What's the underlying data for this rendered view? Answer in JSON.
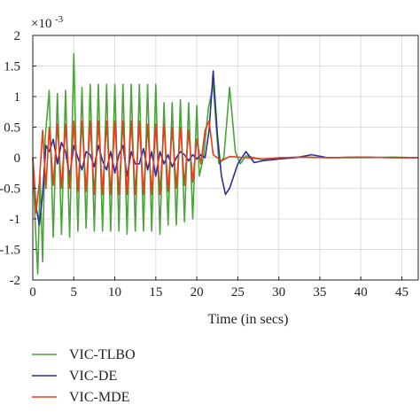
{
  "chart_data": {
    "type": "line",
    "title": "",
    "xlabel": "Time (in secs)",
    "ylabel": "",
    "y_exponent_label": "×10",
    "y_exponent_power": "-3",
    "xlim": [
      0,
      47
    ],
    "ylim": [
      -2,
      2
    ],
    "x_ticks": [
      0,
      5,
      10,
      15,
      20,
      25,
      30,
      35,
      40,
      45
    ],
    "x_tick_labels": [
      "0",
      "5",
      "10",
      "15",
      "20",
      "25",
      "30",
      "35",
      "40",
      "45"
    ],
    "y_ticks": [
      2,
      1.5,
      1,
      0.5,
      0,
      -0.5,
      -1,
      -1.5,
      -2
    ],
    "y_tick_labels": [
      "2",
      "1.5",
      "1",
      "0.5",
      "0",
      "-0.5",
      "-1",
      "-1.5",
      "-2"
    ],
    "grid": true,
    "legend_position": "bottom-left, below plot",
    "series": [
      {
        "name": "VIC-TLBO",
        "color": "#4aa43a",
        "x": [
          0,
          0.3,
          0.6,
          0.9,
          1.2,
          1.5,
          2.0,
          2.5,
          3.0,
          3.5,
          4.0,
          4.5,
          5.0,
          5.5,
          6.0,
          6.5,
          7.0,
          7.5,
          8.0,
          8.5,
          9.0,
          9.5,
          10.0,
          10.5,
          11.0,
          11.5,
          12.0,
          12.5,
          13.0,
          13.5,
          14.0,
          14.5,
          15.0,
          15.5,
          16.0,
          16.5,
          17.0,
          17.5,
          18.0,
          18.5,
          19.0,
          19.5,
          20.0,
          20.3,
          20.8,
          21.4,
          22.0,
          22.7,
          23.3,
          24.0,
          24.7,
          25.3,
          26.0,
          27.0,
          28.0,
          30.0,
          33.0,
          36.0,
          40.0,
          44.0,
          47.0
        ],
        "values": [
          0,
          -1.1,
          -1.9,
          -0.3,
          -1.7,
          0.3,
          1.1,
          -1.3,
          1.05,
          -1.25,
          1.1,
          -1.3,
          1.7,
          -1.2,
          1.15,
          -1.15,
          1.2,
          -1.2,
          1.2,
          -1.2,
          1.2,
          -1.2,
          1.2,
          -1.2,
          1.2,
          -1.25,
          1.2,
          -1.2,
          1.2,
          -1.2,
          1.2,
          -1.2,
          1.2,
          -1.25,
          0.9,
          -1.1,
          0.9,
          -1.1,
          0.95,
          -1.05,
          0.9,
          -1.0,
          0.85,
          -0.3,
          0.0,
          0.8,
          1.2,
          -0.1,
          0.0,
          1.15,
          0.1,
          -0.1,
          0.03,
          0.0,
          -0.03,
          0.0,
          0.01,
          0.0,
          0.0,
          0.01,
          0.0
        ]
      },
      {
        "name": "VIC-DE",
        "color": "#2c2c9c",
        "x": [
          0,
          0.4,
          0.8,
          1.2,
          1.6,
          2.0,
          2.5,
          3.0,
          3.5,
          4.0,
          4.5,
          5.0,
          5.5,
          6.0,
          6.5,
          7.0,
          7.5,
          8.0,
          8.5,
          9.0,
          9.5,
          10.0,
          10.5,
          11.0,
          11.5,
          12.0,
          12.5,
          13.0,
          13.5,
          14.0,
          14.5,
          15.0,
          15.5,
          16.0,
          16.5,
          17.0,
          17.5,
          18.0,
          18.5,
          19.0,
          19.5,
          20.0,
          20.5,
          21.0,
          21.5,
          22.0,
          22.5,
          23.0,
          23.5,
          24.0,
          25.0,
          26.0,
          27.0,
          28.0,
          30.0,
          32.0,
          34.0,
          36.0,
          40.0,
          44.0,
          47.0
        ],
        "values": [
          0,
          -0.8,
          -1.1,
          -0.6,
          0.2,
          0.1,
          0.3,
          -0.1,
          0.25,
          0.1,
          -0.3,
          0.2,
          0.0,
          -0.2,
          0.1,
          0.05,
          -0.15,
          0.2,
          -0.05,
          -0.2,
          0.1,
          -0.25,
          0.05,
          0.2,
          -0.3,
          0.1,
          -0.1,
          -0.1,
          0.15,
          -0.2,
          0.1,
          -0.3,
          0.1,
          -0.1,
          0.05,
          -0.15,
          0.0,
          0.1,
          0.05,
          -0.05,
          0.05,
          -0.02,
          0.05,
          0.0,
          0.45,
          1.42,
          0.4,
          -0.3,
          -0.6,
          -0.5,
          -0.1,
          0.1,
          -0.08,
          -0.05,
          -0.02,
          0.0,
          0.05,
          0.0,
          0.01,
          0.0,
          0.0
        ]
      },
      {
        "name": "VIC-MDE",
        "color": "#e0401c",
        "x": [
          0,
          0.4,
          0.8,
          1.2,
          1.6,
          2.0,
          2.5,
          3.0,
          3.5,
          4.0,
          4.5,
          5.0,
          5.5,
          6.0,
          6.5,
          7.0,
          7.5,
          8.0,
          8.5,
          9.0,
          9.5,
          10.0,
          10.5,
          11.0,
          11.5,
          12.0,
          12.5,
          13.0,
          13.5,
          14.0,
          14.5,
          15.0,
          15.5,
          16.0,
          16.5,
          17.0,
          17.5,
          18.0,
          18.5,
          19.0,
          19.5,
          20.0,
          20.5,
          21.0,
          21.5,
          22.0,
          23.0,
          24.0,
          26.0,
          28.0,
          30.0,
          33.0,
          36.0,
          40.0,
          44.0,
          47.0
        ],
        "values": [
          0,
          -0.9,
          -0.4,
          0.45,
          -0.5,
          0.5,
          -0.45,
          0.55,
          -0.5,
          0.55,
          -0.5,
          0.6,
          -0.55,
          0.6,
          -0.55,
          0.6,
          -0.6,
          0.6,
          -0.6,
          0.6,
          -0.6,
          0.6,
          -0.6,
          0.6,
          -0.6,
          0.6,
          -0.6,
          0.6,
          -0.6,
          0.55,
          -0.6,
          0.55,
          -0.6,
          0.55,
          -0.55,
          0.5,
          -0.5,
          0.5,
          -0.45,
          0.45,
          -0.4,
          0.3,
          -0.1,
          0.45,
          0.6,
          0.05,
          -0.05,
          0.02,
          0.0,
          -0.02,
          0.0,
          0.01,
          0.0,
          0.01,
          0.0,
          0.0
        ]
      }
    ]
  }
}
